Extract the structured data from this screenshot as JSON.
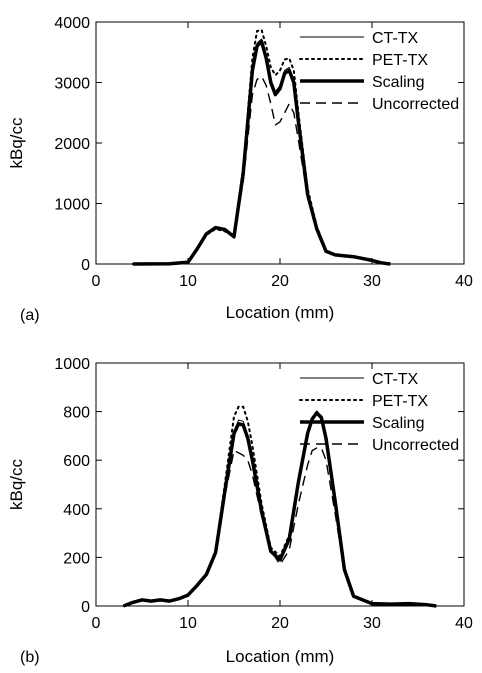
{
  "chart_data": [
    {
      "type": "line",
      "panel_label": "(a)",
      "xlabel": "Location (mm)",
      "ylabel": "kBq/cc",
      "xlim": [
        0,
        40
      ],
      "ylim": [
        0,
        4000
      ],
      "xticks": [
        0,
        10,
        20,
        30,
        40
      ],
      "yticks": [
        0,
        1000,
        2000,
        3000,
        4000
      ],
      "legend_position": "top-right",
      "series": [
        {
          "name": "CT-TX",
          "style": "thin-solid",
          "x": [
            4,
            8,
            10,
            11,
            12,
            13,
            14,
            15,
            16,
            17,
            17.5,
            18,
            18.5,
            19,
            19.5,
            20,
            20.5,
            21,
            21.5,
            22,
            23,
            24,
            25,
            26,
            28,
            30,
            31,
            32
          ],
          "y": [
            0,
            5,
            30,
            250,
            500,
            600,
            560,
            480,
            1500,
            3200,
            3650,
            3720,
            3450,
            3050,
            2850,
            2950,
            3200,
            3250,
            3050,
            2400,
            1200,
            600,
            220,
            150,
            120,
            60,
            20,
            0
          ]
        },
        {
          "name": "PET-TX",
          "style": "dotted",
          "x": [
            4,
            8,
            10,
            11,
            12,
            13,
            14,
            15,
            16,
            17,
            17.5,
            18,
            18.5,
            19,
            19.5,
            20,
            20.5,
            21,
            21.5,
            22,
            23,
            24,
            25,
            26,
            28,
            30,
            31,
            32
          ],
          "y": [
            0,
            5,
            30,
            240,
            480,
            580,
            540,
            470,
            1600,
            3400,
            3850,
            3870,
            3600,
            3250,
            3120,
            3200,
            3380,
            3400,
            3200,
            2500,
            1250,
            620,
            230,
            150,
            120,
            60,
            20,
            0
          ]
        },
        {
          "name": "Scaling",
          "style": "thick-solid",
          "x": [
            4,
            8,
            10,
            11,
            12,
            13,
            14,
            15,
            16,
            17,
            17.5,
            18,
            18.5,
            19,
            19.5,
            20,
            20.5,
            21,
            21.5,
            22,
            23,
            24,
            25,
            26,
            28,
            30,
            31,
            32
          ],
          "y": [
            0,
            5,
            30,
            250,
            500,
            600,
            570,
            450,
            1500,
            3200,
            3600,
            3680,
            3400,
            3000,
            2800,
            2900,
            3150,
            3200,
            3000,
            2350,
            1150,
            580,
            210,
            150,
            120,
            60,
            20,
            0
          ]
        },
        {
          "name": "Uncorrected",
          "style": "dashed",
          "x": [
            4,
            8,
            10,
            11,
            12,
            13,
            14,
            15,
            16,
            17,
            17.5,
            18,
            18.5,
            19,
            19.5,
            20,
            20.5,
            21,
            21.5,
            22,
            23,
            24,
            25,
            26,
            28,
            30,
            31,
            32
          ],
          "y": [
            0,
            5,
            30,
            260,
            520,
            620,
            580,
            470,
            1350,
            2800,
            3050,
            3100,
            2950,
            2650,
            2300,
            2350,
            2500,
            2650,
            2500,
            2050,
            1100,
            600,
            230,
            150,
            120,
            60,
            20,
            0
          ]
        }
      ]
    },
    {
      "type": "line",
      "panel_label": "(b)",
      "xlabel": "Location (mm)",
      "ylabel": "kBq/cc",
      "xlim": [
        0,
        40
      ],
      "ylim": [
        0,
        1000
      ],
      "xticks": [
        0,
        10,
        20,
        30,
        40
      ],
      "yticks": [
        0,
        200,
        400,
        600,
        800,
        1000
      ],
      "legend_position": "top-right",
      "series": [
        {
          "name": "CT-TX",
          "style": "thin-solid",
          "x": [
            3,
            4,
            5,
            6,
            7,
            8,
            9,
            10,
            11,
            12,
            13,
            14,
            15,
            15.5,
            16,
            16.5,
            17,
            18,
            19,
            20,
            21,
            22,
            23,
            23.5,
            24,
            24.5,
            25,
            26,
            27,
            28,
            30,
            32,
            34,
            36,
            37
          ],
          "y": [
            0,
            15,
            25,
            20,
            25,
            20,
            30,
            45,
            85,
            130,
            220,
            470,
            720,
            765,
            760,
            700,
            610,
            400,
            230,
            195,
            270,
            500,
            700,
            760,
            790,
            770,
            680,
            420,
            150,
            40,
            10,
            8,
            10,
            5,
            0
          ]
        },
        {
          "name": "PET-TX",
          "style": "dotted",
          "x": [
            3,
            4,
            5,
            6,
            7,
            8,
            9,
            10,
            11,
            12,
            13,
            14,
            15,
            15.5,
            16,
            16.5,
            17,
            18,
            19,
            20,
            21,
            22,
            23,
            23.5,
            24,
            24.5,
            25,
            26,
            27,
            28,
            30,
            32,
            34,
            36,
            37
          ],
          "y": [
            0,
            15,
            25,
            20,
            25,
            20,
            30,
            45,
            85,
            130,
            230,
            500,
            780,
            820,
            820,
            760,
            660,
            420,
            240,
            205,
            290,
            520,
            720,
            770,
            800,
            780,
            690,
            430,
            150,
            40,
            10,
            8,
            10,
            5,
            0
          ]
        },
        {
          "name": "Scaling",
          "style": "thick-solid",
          "x": [
            3,
            4,
            5,
            6,
            7,
            8,
            9,
            10,
            11,
            12,
            13,
            14,
            15,
            15.5,
            16,
            16.5,
            17,
            18,
            19,
            20,
            21,
            22,
            23,
            23.5,
            24,
            24.5,
            25,
            26,
            27,
            28,
            30,
            32,
            34,
            36,
            37
          ],
          "y": [
            0,
            15,
            25,
            20,
            25,
            20,
            30,
            45,
            85,
            130,
            220,
            470,
            710,
            750,
            745,
            690,
            600,
            390,
            225,
            190,
            275,
            510,
            710,
            770,
            795,
            775,
            690,
            430,
            150,
            40,
            10,
            8,
            10,
            5,
            0
          ]
        },
        {
          "name": "Uncorrected",
          "style": "dashed",
          "x": [
            3,
            4,
            5,
            6,
            7,
            8,
            9,
            10,
            11,
            12,
            13,
            14,
            15,
            15.5,
            16,
            16.5,
            17,
            18,
            19,
            20,
            21,
            22,
            23,
            23.5,
            24,
            24.5,
            25,
            26,
            27,
            28,
            30,
            32,
            34,
            36,
            37
          ],
          "y": [
            0,
            15,
            25,
            20,
            25,
            20,
            30,
            45,
            85,
            130,
            220,
            450,
            640,
            630,
            620,
            600,
            540,
            370,
            230,
            170,
            230,
            420,
            580,
            640,
            650,
            650,
            600,
            380,
            140,
            40,
            10,
            8,
            10,
            5,
            0
          ]
        }
      ]
    }
  ]
}
